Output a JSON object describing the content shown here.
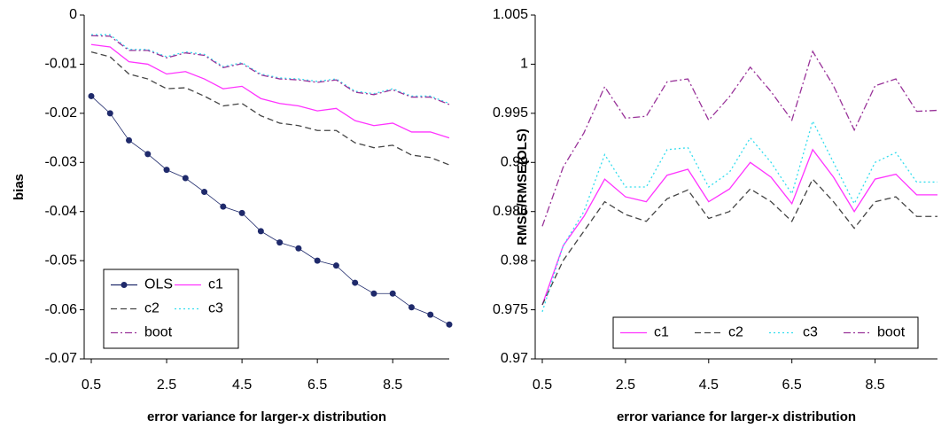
{
  "chart_data": [
    {
      "type": "line",
      "x_label": "error variance for larger-x distribution",
      "y_label": "bias",
      "x": [
        0.5,
        1,
        1.5,
        2,
        2.5,
        3,
        3.5,
        4,
        4.5,
        5,
        5.5,
        6,
        6.5,
        7,
        7.5,
        8,
        8.5,
        9,
        9.5,
        10
      ],
      "xlim": [
        0.5,
        10
      ],
      "xticks": [
        0.5,
        2.5,
        4.5,
        6.5,
        8.5
      ],
      "ylim": [
        -0.07,
        0
      ],
      "yticks": [
        0,
        -0.01,
        -0.02,
        -0.03,
        -0.04,
        -0.05,
        -0.06,
        -0.07
      ],
      "legend": "lower left",
      "legend_columns": 2,
      "series": [
        {
          "name": "OLS",
          "color": "#1f2a6b",
          "linestyle": "solid",
          "marker": "circle",
          "values": [
            -0.0165,
            -0.02,
            -0.0255,
            -0.0283,
            -0.0315,
            -0.0332,
            -0.036,
            -0.039,
            -0.0403,
            -0.044,
            -0.0463,
            -0.0475,
            -0.05,
            -0.051,
            -0.0545,
            -0.0567,
            -0.0567,
            -0.0595,
            -0.061,
            -0.063
          ]
        },
        {
          "name": "c1",
          "color": "#ff33ff",
          "linestyle": "solid",
          "values": [
            -0.006,
            -0.0065,
            -0.0095,
            -0.01,
            -0.012,
            -0.0115,
            -0.013,
            -0.015,
            -0.0145,
            -0.017,
            -0.018,
            -0.0185,
            -0.0195,
            -0.019,
            -0.0215,
            -0.0225,
            -0.022,
            -0.0238,
            -0.0238,
            -0.025
          ]
        },
        {
          "name": "c2",
          "color": "#444444",
          "linestyle": "dash",
          "values": [
            -0.0075,
            -0.0085,
            -0.012,
            -0.013,
            -0.015,
            -0.0148,
            -0.0165,
            -0.0185,
            -0.018,
            -0.0205,
            -0.022,
            -0.0225,
            -0.0235,
            -0.0235,
            -0.026,
            -0.027,
            -0.0265,
            -0.0285,
            -0.029,
            -0.0305
          ]
        },
        {
          "name": "c3",
          "color": "#33ddee",
          "linestyle": "dot",
          "values": [
            -0.004,
            -0.004,
            -0.007,
            -0.007,
            -0.0085,
            -0.0075,
            -0.008,
            -0.0105,
            -0.0097,
            -0.012,
            -0.0128,
            -0.013,
            -0.0135,
            -0.013,
            -0.0155,
            -0.016,
            -0.015,
            -0.0165,
            -0.0165,
            -0.018
          ]
        },
        {
          "name": "boot",
          "color": "#993399",
          "linestyle": "dashdot",
          "values": [
            -0.0042,
            -0.0043,
            -0.0072,
            -0.0072,
            -0.0087,
            -0.0077,
            -0.0082,
            -0.0107,
            -0.0099,
            -0.0122,
            -0.013,
            -0.0132,
            -0.0137,
            -0.0132,
            -0.0157,
            -0.0162,
            -0.0152,
            -0.0167,
            -0.0167,
            -0.0182
          ]
        }
      ]
    },
    {
      "type": "line",
      "x_label": "error variance for larger-x distribution",
      "y_label": "RMSE/RMSE(OLS)",
      "x": [
        0.5,
        1,
        1.5,
        2,
        2.5,
        3,
        3.5,
        4,
        4.5,
        5,
        5.5,
        6,
        6.5,
        7,
        7.5,
        8,
        8.5,
        9,
        9.5,
        10
      ],
      "xlim": [
        0.5,
        10
      ],
      "xticks": [
        0.5,
        2.5,
        4.5,
        6.5,
        8.5
      ],
      "ylim": [
        0.97,
        1.005
      ],
      "yticks": [
        0.97,
        0.975,
        0.98,
        0.985,
        0.99,
        0.995,
        1,
        1.005
      ],
      "legend": "lower right",
      "legend_columns": 4,
      "series": [
        {
          "name": "c1",
          "color": "#ff33ff",
          "linestyle": "solid",
          "values": [
            0.9755,
            0.9815,
            0.9845,
            0.9883,
            0.9865,
            0.986,
            0.9887,
            0.9893,
            0.986,
            0.9873,
            0.99,
            0.9885,
            0.9858,
            0.9913,
            0.9885,
            0.985,
            0.9883,
            0.9888,
            0.9867,
            0.9867
          ]
        },
        {
          "name": "c2",
          "color": "#444444",
          "linestyle": "dash",
          "values": [
            0.9755,
            0.98,
            0.983,
            0.986,
            0.9847,
            0.984,
            0.9863,
            0.9872,
            0.9843,
            0.985,
            0.9873,
            0.986,
            0.984,
            0.9883,
            0.986,
            0.9833,
            0.986,
            0.9865,
            0.9845,
            0.9845
          ]
        },
        {
          "name": "c3",
          "color": "#33ddee",
          "linestyle": "dot",
          "values": [
            0.9748,
            0.9815,
            0.985,
            0.9908,
            0.9875,
            0.9875,
            0.9913,
            0.9915,
            0.9875,
            0.989,
            0.9925,
            0.99,
            0.9868,
            0.9942,
            0.99,
            0.9858,
            0.99,
            0.991,
            0.988,
            0.988
          ]
        },
        {
          "name": "boot",
          "color": "#993399",
          "linestyle": "dashdot",
          "values": [
            0.9835,
            0.9895,
            0.993,
            0.9977,
            0.9945,
            0.9947,
            0.9982,
            0.9985,
            0.9943,
            0.9967,
            0.9997,
            0.9972,
            0.9943,
            1.0013,
            0.9978,
            0.9933,
            0.9978,
            0.9985,
            0.9952,
            0.9953
          ]
        }
      ]
    }
  ]
}
